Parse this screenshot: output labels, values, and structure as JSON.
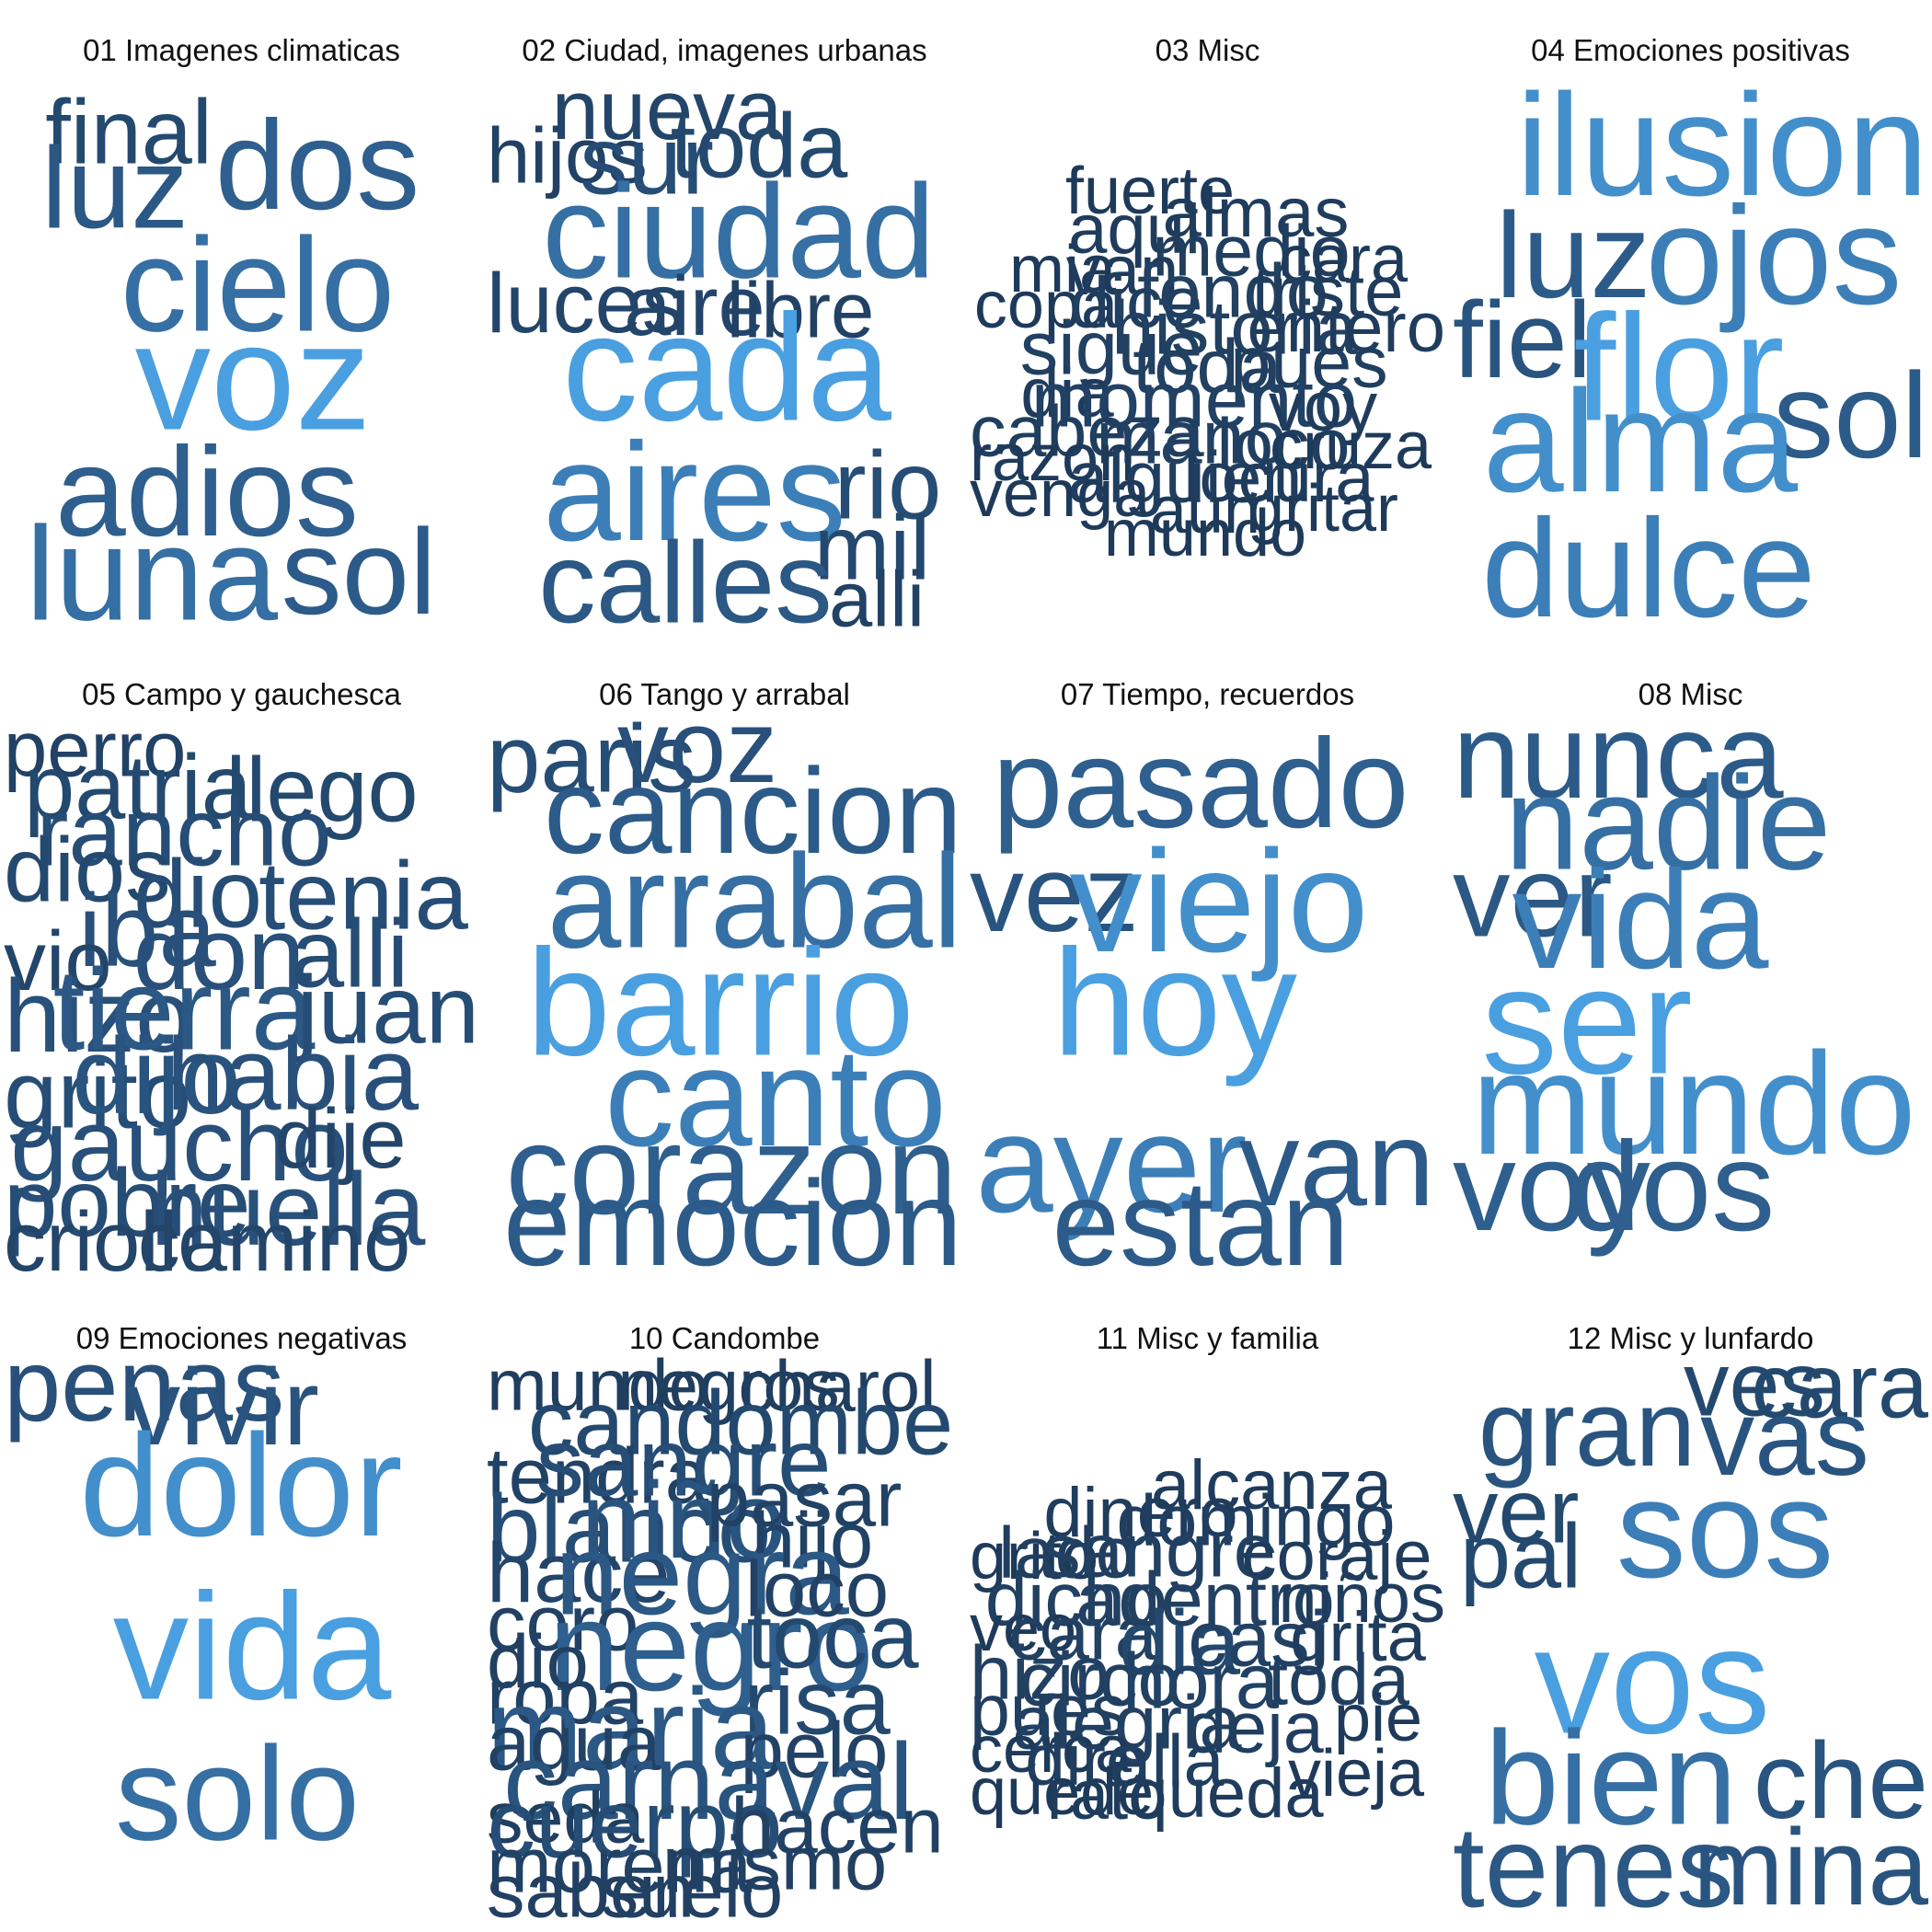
{
  "colors": {
    "dark": "#1e3a5a",
    "mid": "#2e5f8f",
    "bright": "#4a9fe0"
  },
  "panels": [
    {
      "title": "01 Imagenes climaticas",
      "words": [
        {
          "t": "final",
          "w": 0.5
        },
        {
          "t": "dos",
          "w": 0.8
        },
        {
          "t": "luz",
          "w": 0.7
        },
        {
          "t": "cielo",
          "w": 0.85
        },
        {
          "t": "voz",
          "w": 1.0
        },
        {
          "t": "adios",
          "w": 0.8
        },
        {
          "t": "luna",
          "w": 0.85
        },
        {
          "t": "sol",
          "w": 0.75
        }
      ]
    },
    {
      "title": "02 Ciudad, imagenes urbanas",
      "words": [
        {
          "t": "nueva",
          "w": 0.45
        },
        {
          "t": "hijos",
          "w": 0.4
        },
        {
          "t": "sur",
          "w": 0.55
        },
        {
          "t": "toda",
          "w": 0.5
        },
        {
          "t": "ciudad",
          "w": 0.85
        },
        {
          "t": "luces",
          "w": 0.45
        },
        {
          "t": "aire",
          "w": 0.45
        },
        {
          "t": "libre",
          "w": 0.4
        },
        {
          "t": "cada",
          "w": 1.0
        },
        {
          "t": "aires",
          "w": 0.9
        },
        {
          "t": "rio",
          "w": 0.55
        },
        {
          "t": "mil",
          "w": 0.5
        },
        {
          "t": "calles",
          "w": 0.7
        },
        {
          "t": "alli",
          "w": 0.4
        }
      ]
    },
    {
      "title": "03 Misc",
      "words": [
        {
          "t": "fuerte",
          "w": 0.3
        },
        {
          "t": "almas",
          "w": 0.33
        },
        {
          "t": "aqui",
          "w": 0.33
        },
        {
          "t": "medio",
          "w": 0.35
        },
        {
          "t": "mia",
          "w": 0.3
        },
        {
          "t": "van",
          "w": 0.33
        },
        {
          "t": "cara",
          "w": 0.3
        },
        {
          "t": "copa",
          "w": 0.3
        },
        {
          "t": "dice",
          "w": 0.35
        },
        {
          "t": "fondo",
          "w": 0.38
        },
        {
          "t": "triste",
          "w": 0.33
        },
        {
          "t": "historia",
          "w": 0.38
        },
        {
          "t": "entero",
          "w": 0.33
        },
        {
          "t": "sigue",
          "w": 0.38
        },
        {
          "t": "toda",
          "w": 0.38
        },
        {
          "t": "pues",
          "w": 0.35
        },
        {
          "t": "dia",
          "w": 0.33
        },
        {
          "t": "momento",
          "w": 0.4
        },
        {
          "t": "voy",
          "w": 0.33
        },
        {
          "t": "cabeza",
          "w": 0.35
        },
        {
          "t": "mano",
          "w": 0.38
        },
        {
          "t": "loco",
          "w": 0.35
        },
        {
          "t": "cruza",
          "w": 0.3
        },
        {
          "t": "razon",
          "w": 0.3
        },
        {
          "t": "alguien",
          "w": 0.35
        },
        {
          "t": "locura",
          "w": 0.33
        },
        {
          "t": "venga",
          "w": 0.3
        },
        {
          "t": "aun",
          "w": 0.3
        },
        {
          "t": "gritar",
          "w": 0.3
        },
        {
          "t": "mundo",
          "w": 0.3
        }
      ]
    },
    {
      "title": "04 Emociones positivas",
      "words": [
        {
          "t": "ilusion",
          "w": 0.95
        },
        {
          "t": "luz",
          "w": 0.75
        },
        {
          "t": "ojos",
          "w": 0.9
        },
        {
          "t": "fiel",
          "w": 0.65
        },
        {
          "t": "flor",
          "w": 1.0
        },
        {
          "t": "sol",
          "w": 0.75
        },
        {
          "t": "alma",
          "w": 0.95
        },
        {
          "t": "dulce",
          "w": 0.9
        }
      ]
    },
    {
      "title": "05 Campo y gauchesca",
      "words": [
        {
          "t": "perro",
          "w": 0.4
        },
        {
          "t": "patria",
          "w": 0.5
        },
        {
          "t": "llego",
          "w": 0.5
        },
        {
          "t": "rancho",
          "w": 0.55
        },
        {
          "t": "dios",
          "w": 0.5
        },
        {
          "t": "dio",
          "w": 0.55
        },
        {
          "t": "tenia",
          "w": 0.55
        },
        {
          "t": "iba",
          "w": 0.6
        },
        {
          "t": "vio",
          "w": 0.45
        },
        {
          "t": "don",
          "w": 0.6
        },
        {
          "t": "alli",
          "w": 0.55
        },
        {
          "t": "hizo",
          "w": 0.6
        },
        {
          "t": "tierra",
          "w": 0.7
        },
        {
          "t": "juan",
          "w": 0.55
        },
        {
          "t": "grito",
          "w": 0.55
        },
        {
          "t": "dijo",
          "w": 0.65
        },
        {
          "t": "habia",
          "w": 0.6
        },
        {
          "t": "gaucho",
          "w": 0.6
        },
        {
          "t": "dije",
          "w": 0.45
        },
        {
          "t": "pobre",
          "w": 0.55
        },
        {
          "t": "huella",
          "w": 0.6
        },
        {
          "t": "criollo",
          "w": 0.45
        },
        {
          "t": "camino",
          "w": 0.45
        }
      ]
    },
    {
      "title": "06 Tango y arrabal",
      "words": [
        {
          "t": "paris",
          "w": 0.55
        },
        {
          "t": "voz",
          "w": 0.6
        },
        {
          "t": "cancion",
          "w": 0.75
        },
        {
          "t": "arrabal",
          "w": 0.85
        },
        {
          "t": "barrio",
          "w": 1.0
        },
        {
          "t": "canto",
          "w": 0.9
        },
        {
          "t": "corazon",
          "w": 0.8
        },
        {
          "t": "emocion",
          "w": 0.75
        }
      ]
    },
    {
      "title": "07 Tiempo, recuerdos",
      "words": [
        {
          "t": "pasado",
          "w": 0.8
        },
        {
          "t": "vez",
          "w": 0.65
        },
        {
          "t": "viejo",
          "w": 0.95
        },
        {
          "t": "hoy",
          "w": 1.0
        },
        {
          "t": "ayer",
          "w": 0.9
        },
        {
          "t": "van",
          "w": 0.75
        },
        {
          "t": "estan",
          "w": 0.75
        }
      ]
    },
    {
      "title": "08 Misc",
      "words": [
        {
          "t": "nunca",
          "w": 0.75
        },
        {
          "t": "nadie",
          "w": 0.85
        },
        {
          "t": "ver",
          "w": 0.7
        },
        {
          "t": "vida",
          "w": 0.9
        },
        {
          "t": "ser",
          "w": 1.0
        },
        {
          "t": "mundo",
          "w": 0.95
        },
        {
          "t": "voy",
          "w": 0.8
        },
        {
          "t": "dos",
          "w": 0.8
        }
      ]
    },
    {
      "title": "09 Emociones negativas",
      "words": [
        {
          "t": "penas",
          "w": 0.6
        },
        {
          "t": "vivir",
          "w": 0.65
        },
        {
          "t": "dolor",
          "w": 0.95
        },
        {
          "t": "vida",
          "w": 1.0
        },
        {
          "t": "solo",
          "w": 0.85
        }
      ]
    },
    {
      "title": "10 Candombe",
      "words": [
        {
          "t": "mundo",
          "w": 0.35
        },
        {
          "t": "negros",
          "w": 0.35
        },
        {
          "t": "charol",
          "w": 0.35
        },
        {
          "t": "candombe",
          "w": 0.5
        },
        {
          "t": "tendra",
          "w": 0.4
        },
        {
          "t": "sangre",
          "w": 0.55
        },
        {
          "t": "blanco",
          "w": 0.55
        },
        {
          "t": "niño",
          "w": 0.65
        },
        {
          "t": "pasar",
          "w": 0.4
        },
        {
          "t": "hijo",
          "w": 0.4
        },
        {
          "t": "hace",
          "w": 0.45
        },
        {
          "t": "negra",
          "w": 0.7
        },
        {
          "t": "loco",
          "w": 0.4
        },
        {
          "t": "coro",
          "w": 0.4
        },
        {
          "t": "negro",
          "w": 0.8
        },
        {
          "t": "toca",
          "w": 0.5
        },
        {
          "t": "dio",
          "w": 0.38
        },
        {
          "t": "ropa",
          "w": 0.4
        },
        {
          "t": "risa",
          "w": 0.5
        },
        {
          "t": "maria",
          "w": 0.7
        },
        {
          "t": "agua",
          "w": 0.4
        },
        {
          "t": "pelo",
          "w": 0.4
        },
        {
          "t": "carnaval",
          "w": 0.65
        },
        {
          "t": "seda",
          "w": 0.35
        },
        {
          "t": "cuerpo",
          "w": 0.55
        },
        {
          "t": "hacen",
          "w": 0.4
        },
        {
          "t": "morena",
          "w": 0.4
        },
        {
          "t": "mismo",
          "w": 0.38
        },
        {
          "t": "saben",
          "w": 0.38
        },
        {
          "t": "suelo",
          "w": 0.38
        }
      ]
    },
    {
      "title": "11 Misc y familia",
      "words": [
        {
          "t": "alcanza",
          "w": 0.33
        },
        {
          "t": "dinero",
          "w": 0.33
        },
        {
          "t": "domingo",
          "w": 0.35
        },
        {
          "t": "grito",
          "w": 0.3
        },
        {
          "t": "lado",
          "w": 0.35
        },
        {
          "t": "sangre",
          "w": 0.38
        },
        {
          "t": "coraje",
          "w": 0.33
        },
        {
          "t": "dicho",
          "w": 0.38
        },
        {
          "t": "adentro",
          "w": 0.38
        },
        {
          "t": "niños",
          "w": 0.33
        },
        {
          "t": "veo",
          "w": 0.3
        },
        {
          "t": "cara",
          "w": 0.38
        },
        {
          "t": "dia",
          "w": 0.5
        },
        {
          "t": "casi",
          "w": 0.4
        },
        {
          "t": "grita",
          "w": 0.33
        },
        {
          "t": "hizo",
          "w": 0.38
        },
        {
          "t": "circo",
          "w": 0.38
        },
        {
          "t": "hora",
          "w": 0.4
        },
        {
          "t": "toda",
          "w": 0.35
        },
        {
          "t": "pues",
          "w": 0.35
        },
        {
          "t": "alegria",
          "w": 0.38
        },
        {
          "t": "deja",
          "w": 0.35
        },
        {
          "t": "pie",
          "w": 0.3
        },
        {
          "t": "cerca",
          "w": 0.3
        },
        {
          "t": "dire",
          "w": 0.35
        },
        {
          "t": "alla",
          "w": 0.35
        },
        {
          "t": "vieja",
          "w": 0.3
        },
        {
          "t": "quede",
          "w": 0.3
        },
        {
          "t": "rato",
          "w": 0.33
        },
        {
          "t": "queda",
          "w": 0.33
        }
      ]
    },
    {
      "title": "12 Misc y lunfardo",
      "words": [
        {
          "t": "ves",
          "w": 0.5
        },
        {
          "t": "cara",
          "w": 0.5
        },
        {
          "t": "gran",
          "w": 0.65
        },
        {
          "t": "vas",
          "w": 0.65
        },
        {
          "t": "ver",
          "w": 0.5
        },
        {
          "t": "sos",
          "w": 0.9
        },
        {
          "t": "pal",
          "w": 0.5
        },
        {
          "t": "vos",
          "w": 1.0
        },
        {
          "t": "bien",
          "w": 0.85
        },
        {
          "t": "che",
          "w": 0.65
        },
        {
          "t": "tenes",
          "w": 0.7
        },
        {
          "t": "mina",
          "w": 0.65
        }
      ]
    }
  ]
}
